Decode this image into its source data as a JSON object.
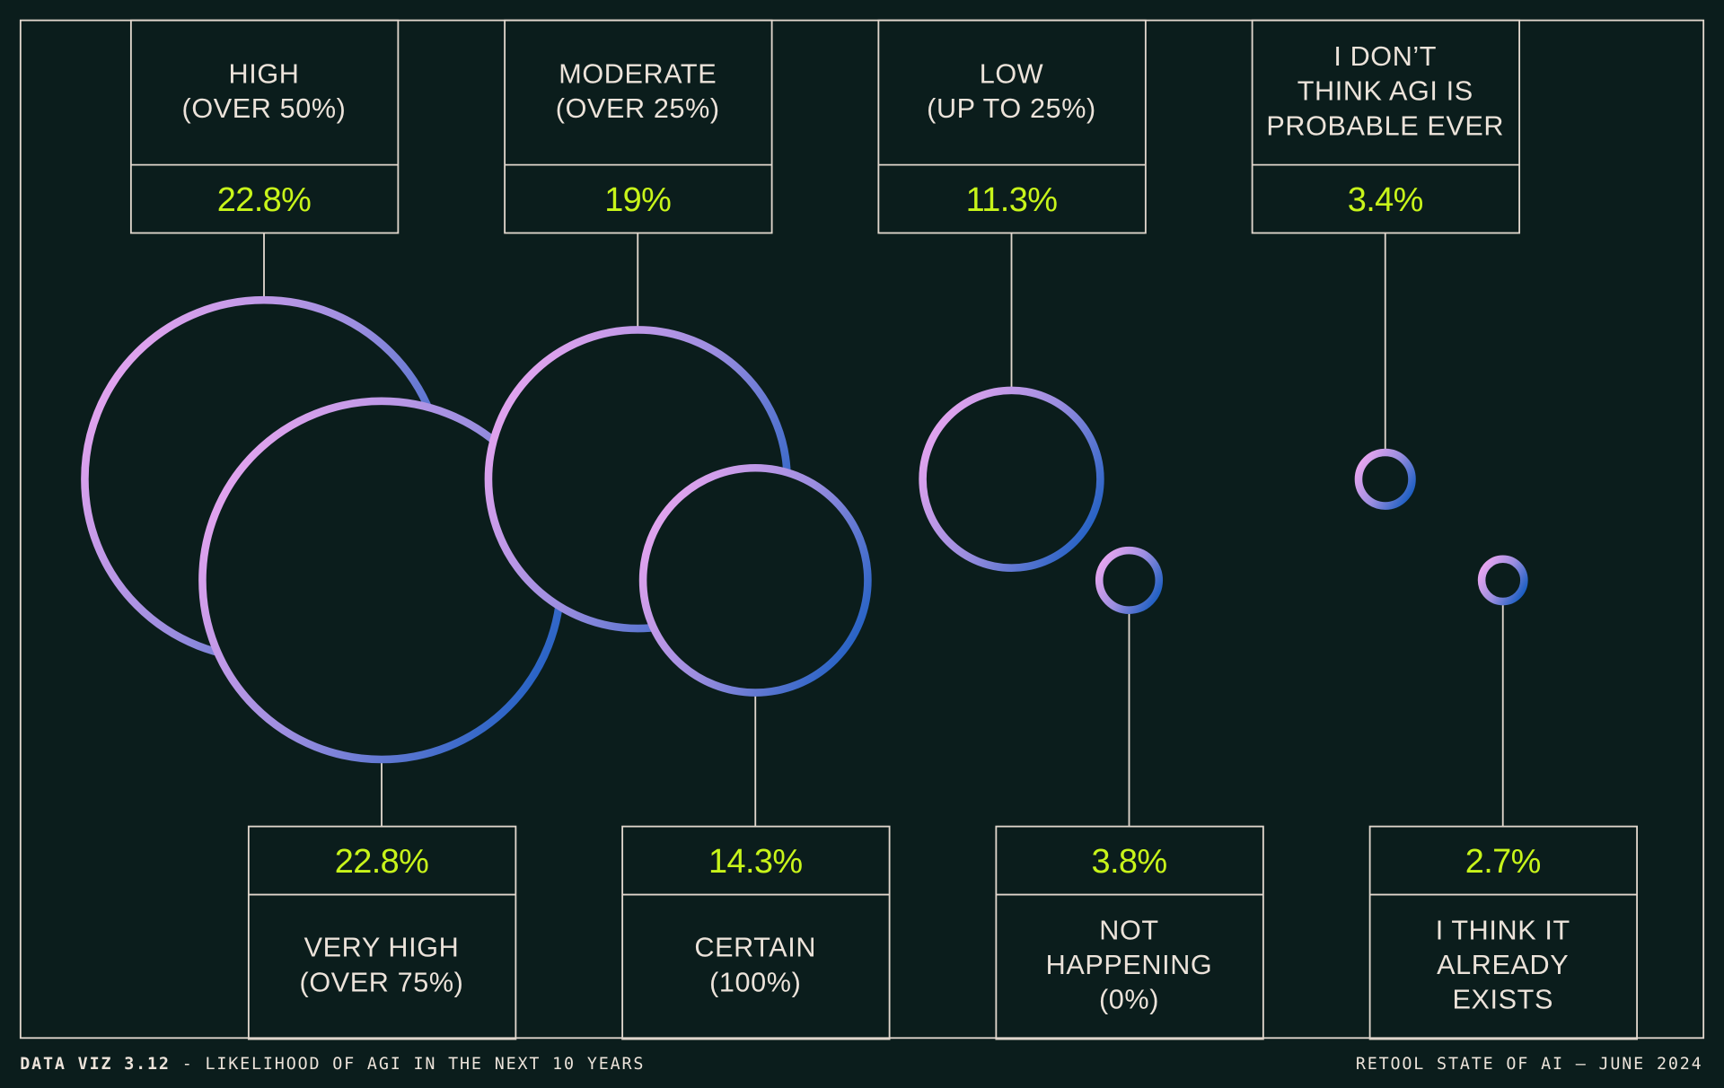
{
  "chart_data": {
    "type": "bubble",
    "series": [
      {
        "label": [
          "HIGH",
          "(OVER 50%)"
        ],
        "value": 22.8,
        "value_label": "22.8%",
        "position": "top"
      },
      {
        "label": [
          "VERY HIGH",
          "(OVER 75%)"
        ],
        "value": 22.8,
        "value_label": "22.8%",
        "position": "bottom"
      },
      {
        "label": [
          "MODERATE",
          "(OVER 25%)"
        ],
        "value": 19,
        "value_label": "19%",
        "position": "top"
      },
      {
        "label": [
          "CERTAIN",
          "(100%)"
        ],
        "value": 14.3,
        "value_label": "14.3%",
        "position": "bottom"
      },
      {
        "label": [
          "LOW",
          "(UP TO 25%)"
        ],
        "value": 11.3,
        "value_label": "11.3%",
        "position": "top"
      },
      {
        "label": [
          "NOT",
          "HAPPENING",
          "(0%)"
        ],
        "value": 3.8,
        "value_label": "3.8%",
        "position": "bottom"
      },
      {
        "label": [
          "I DON’T",
          "THINK AGI IS",
          "PROBABLE EVER"
        ],
        "value": 3.4,
        "value_label": "3.4%",
        "position": "top"
      },
      {
        "label": [
          "I THINK IT",
          "ALREADY",
          "EXISTS"
        ],
        "value": 2.7,
        "value_label": "2.7%",
        "position": "bottom"
      }
    ]
  },
  "footer": {
    "left_bold": "DATA VIZ 3.12",
    "left_rest": " - LIKELIHOOD OF AGI IN THE NEXT 10 YEARS",
    "right": "RETOOL STATE OF AI — JUNE 2024"
  },
  "colors": {
    "background": "#0b1d1c",
    "line": "#e0d6cc",
    "value_text": "#c8f51a",
    "ring_gradient": [
      "#eaa6f0",
      "#9c8ee0",
      "#1a5ec2"
    ]
  }
}
